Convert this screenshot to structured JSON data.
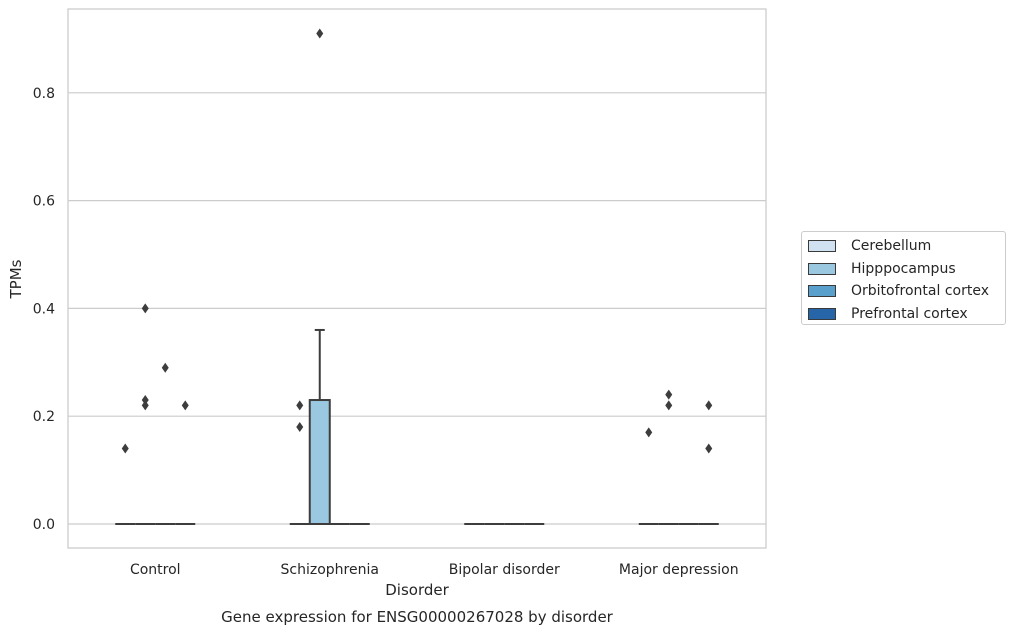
{
  "chart_data": {
    "type": "box",
    "title": "Gene expression for ENSG00000267028 by disorder",
    "xlabel": "Disorder",
    "ylabel": "TPMs",
    "categories": [
      "Control",
      "Schizophrenia",
      "Bipolar disorder",
      "Major depression"
    ],
    "yticks": [
      "0.0",
      "0.2",
      "0.4",
      "0.6",
      "0.8"
    ],
    "ylim": [
      -0.045,
      0.955
    ],
    "grid": "horizontal",
    "legend_position": "right",
    "series": [
      {
        "name": "Cerebellum",
        "color": "#d0e1f2",
        "boxes": [
          {
            "category": "Control",
            "q1": 0,
            "median": 0,
            "q3": 0,
            "whisker_low": 0,
            "whisker_high": 0,
            "outliers": [
              0.14
            ]
          },
          {
            "category": "Schizophrenia",
            "q1": 0,
            "median": 0,
            "q3": 0,
            "whisker_low": 0,
            "whisker_high": 0,
            "outliers": [
              0.18,
              0.22
            ]
          },
          {
            "category": "Bipolar disorder",
            "q1": 0,
            "median": 0,
            "q3": 0,
            "whisker_low": 0,
            "whisker_high": 0,
            "outliers": []
          },
          {
            "category": "Major depression",
            "q1": 0,
            "median": 0,
            "q3": 0,
            "whisker_low": 0,
            "whisker_high": 0,
            "outliers": [
              0.17
            ]
          }
        ]
      },
      {
        "name": "Hipppocampus",
        "color": "#9ac8e0",
        "boxes": [
          {
            "category": "Control",
            "q1": 0,
            "median": 0,
            "q3": 0,
            "whisker_low": 0,
            "whisker_high": 0,
            "outliers": [
              0.22,
              0.23,
              0.4
            ]
          },
          {
            "category": "Schizophrenia",
            "q1": 0,
            "median": 0,
            "q3": 0.23,
            "whisker_low": 0,
            "whisker_high": 0.36,
            "outliers": [
              0.91
            ]
          },
          {
            "category": "Bipolar disorder",
            "q1": 0,
            "median": 0,
            "q3": 0,
            "whisker_low": 0,
            "whisker_high": 0,
            "outliers": []
          },
          {
            "category": "Major depression",
            "q1": 0,
            "median": 0,
            "q3": 0,
            "whisker_low": 0,
            "whisker_high": 0,
            "outliers": [
              0.22,
              0.24
            ]
          }
        ]
      },
      {
        "name": "Orbitofrontal cortex",
        "color": "#5aa0cd",
        "boxes": [
          {
            "category": "Control",
            "q1": 0,
            "median": 0,
            "q3": 0,
            "whisker_low": 0,
            "whisker_high": 0,
            "outliers": [
              0.29
            ]
          },
          {
            "category": "Schizophrenia",
            "q1": 0,
            "median": 0,
            "q3": 0,
            "whisker_low": 0,
            "whisker_high": 0,
            "outliers": []
          },
          {
            "category": "Bipolar disorder",
            "q1": 0,
            "median": 0,
            "q3": 0,
            "whisker_low": 0,
            "whisker_high": 0,
            "outliers": []
          },
          {
            "category": "Major depression",
            "q1": 0,
            "median": 0,
            "q3": 0,
            "whisker_low": 0,
            "whisker_high": 0,
            "outliers": []
          }
        ]
      },
      {
        "name": "Prefrontal cortex",
        "color": "#2565a8",
        "boxes": [
          {
            "category": "Control",
            "q1": 0,
            "median": 0,
            "q3": 0,
            "whisker_low": 0,
            "whisker_high": 0,
            "outliers": [
              0.22
            ]
          },
          {
            "category": "Schizophrenia",
            "q1": 0,
            "median": 0,
            "q3": 0,
            "whisker_low": 0,
            "whisker_high": 0,
            "outliers": []
          },
          {
            "category": "Bipolar disorder",
            "q1": 0,
            "median": 0,
            "q3": 0,
            "whisker_low": 0,
            "whisker_high": 0,
            "outliers": []
          },
          {
            "category": "Major depression",
            "q1": 0,
            "median": 0,
            "q3": 0,
            "whisker_low": 0,
            "whisker_high": 0,
            "outliers": [
              0.14,
              0.22
            ]
          }
        ]
      }
    ]
  }
}
